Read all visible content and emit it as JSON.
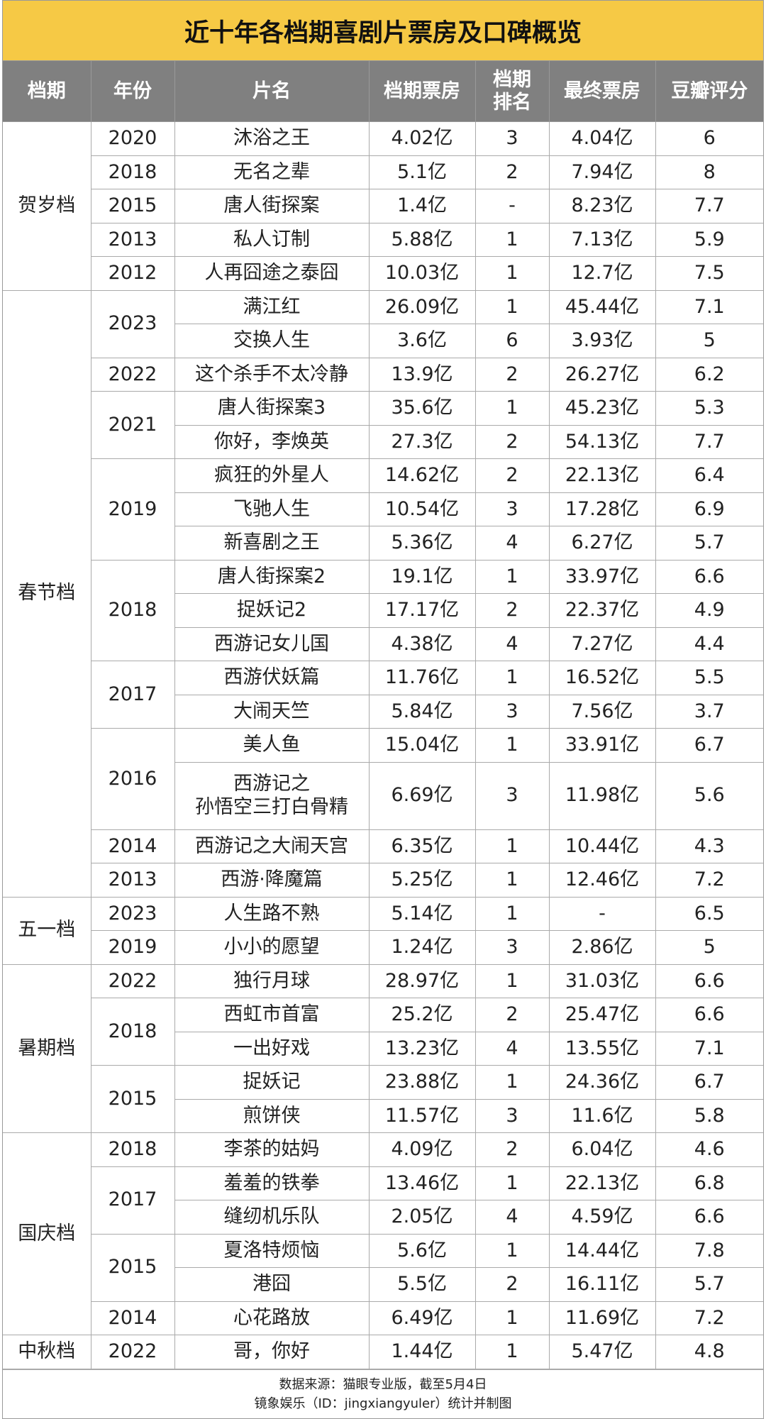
{
  "title": "近十年各档期喜剧片票房及口碑概览",
  "headers": [
    "档期",
    "年份",
    "片名",
    "档期票房",
    "档期\n排名",
    "最终票房",
    "豆瓣评分"
  ],
  "groups": [
    {
      "period": "贺岁档",
      "years": [
        {
          "year": "2020",
          "films": [
            [
              "沐浴之王",
              "4.02亿",
              "3",
              "4.04亿",
              "6"
            ]
          ]
        },
        {
          "year": "2018",
          "films": [
            [
              "无名之辈",
              "5.1亿",
              "2",
              "7.94亿",
              "8"
            ]
          ]
        },
        {
          "year": "2015",
          "films": [
            [
              "唐人街探案",
              "1.4亿",
              "-",
              "8.23亿",
              "7.7"
            ]
          ]
        },
        {
          "year": "2013",
          "films": [
            [
              "私人订制",
              "5.88亿",
              "1",
              "7.13亿",
              "5.9"
            ]
          ]
        },
        {
          "year": "2012",
          "films": [
            [
              "人再囧途之泰囧",
              "10.03亿",
              "1",
              "12.7亿",
              "7.5"
            ]
          ]
        }
      ]
    },
    {
      "period": "春节档",
      "years": [
        {
          "year": "2023",
          "films": [
            [
              "满江红",
              "26.09亿",
              "1",
              "45.44亿",
              "7.1"
            ],
            [
              "交换人生",
              "3.6亿",
              "6",
              "3.93亿",
              "5"
            ]
          ]
        },
        {
          "year": "2022",
          "films": [
            [
              "这个杀手不太冷静",
              "13.9亿",
              "2",
              "26.27亿",
              "6.2"
            ]
          ]
        },
        {
          "year": "2021",
          "films": [
            [
              "唐人街探案3",
              "35.6亿",
              "1",
              "45.23亿",
              "5.3"
            ],
            [
              "你好，李焕英",
              "27.3亿",
              "2",
              "54.13亿",
              "7.7"
            ]
          ]
        },
        {
          "year": "2019",
          "films": [
            [
              "疯狂的外星人",
              "14.62亿",
              "2",
              "22.13亿",
              "6.4"
            ],
            [
              "飞驰人生",
              "10.54亿",
              "3",
              "17.28亿",
              "6.9"
            ],
            [
              "新喜剧之王",
              "5.36亿",
              "4",
              "6.27亿",
              "5.7"
            ]
          ]
        },
        {
          "year": "2018",
          "films": [
            [
              "唐人街探案2",
              "19.1亿",
              "1",
              "33.97亿",
              "6.6"
            ],
            [
              "捉妖记2",
              "17.17亿",
              "2",
              "22.37亿",
              "4.9"
            ],
            [
              "西游记女儿国",
              "4.38亿",
              "4",
              "7.27亿",
              "4.4"
            ]
          ]
        },
        {
          "year": "2017",
          "films": [
            [
              "西游伏妖篇",
              "11.76亿",
              "1",
              "16.52亿",
              "5.5"
            ],
            [
              "大闹天竺",
              "5.84亿",
              "3",
              "7.56亿",
              "3.7"
            ]
          ]
        },
        {
          "year": "2016",
          "films": [
            [
              "美人鱼",
              "15.04亿",
              "1",
              "33.91亿",
              "6.7"
            ],
            [
              "西游记之\n孙悟空三打白骨精",
              "6.69亿",
              "3",
              "11.98亿",
              "5.6"
            ]
          ]
        },
        {
          "year": "2014",
          "films": [
            [
              "西游记之大闹天宫",
              "6.35亿",
              "1",
              "10.44亿",
              "4.3"
            ]
          ]
        },
        {
          "year": "2013",
          "films": [
            [
              "西游·降魔篇",
              "5.25亿",
              "1",
              "12.46亿",
              "7.2"
            ]
          ]
        }
      ]
    },
    {
      "period": "五一档",
      "years": [
        {
          "year": "2023",
          "films": [
            [
              "人生路不熟",
              "5.14亿",
              "1",
              "-",
              "6.5"
            ]
          ]
        },
        {
          "year": "2019",
          "films": [
            [
              "小小的愿望",
              "1.24亿",
              "3",
              "2.86亿",
              "5"
            ]
          ]
        }
      ]
    },
    {
      "period": "暑期档",
      "years": [
        {
          "year": "2022",
          "films": [
            [
              "独行月球",
              "28.97亿",
              "1",
              "31.03亿",
              "6.6"
            ]
          ]
        },
        {
          "year": "2018",
          "films": [
            [
              "西虹市首富",
              "25.2亿",
              "2",
              "25.47亿",
              "6.6"
            ],
            [
              "一出好戏",
              "13.23亿",
              "4",
              "13.55亿",
              "7.1"
            ]
          ]
        },
        {
          "year": "2015",
          "films": [
            [
              "捉妖记",
              "23.88亿",
              "1",
              "24.36亿",
              "6.7"
            ],
            [
              "煎饼侠",
              "11.57亿",
              "3",
              "11.6亿",
              "5.8"
            ]
          ]
        }
      ]
    },
    {
      "period": "国庆档",
      "years": [
        {
          "year": "2018",
          "films": [
            [
              "李茶的姑妈",
              "4.09亿",
              "2",
              "6.04亿",
              "4.6"
            ]
          ]
        },
        {
          "year": "2017",
          "films": [
            [
              "羞羞的铁拳",
              "13.46亿",
              "1",
              "22.13亿",
              "6.8"
            ],
            [
              "缝纫机乐队",
              "2.05亿",
              "4",
              "4.59亿",
              "6.6"
            ]
          ]
        },
        {
          "year": "2015",
          "films": [
            [
              "夏洛特烦恼",
              "5.6亿",
              "1",
              "14.44亿",
              "7.8"
            ],
            [
              "港囧",
              "5.5亿",
              "2",
              "16.11亿",
              "5.7"
            ]
          ]
        },
        {
          "year": "2014",
          "films": [
            [
              "心花路放",
              "6.49亿",
              "1",
              "11.69亿",
              "7.2"
            ]
          ]
        }
      ]
    },
    {
      "period": "中秋档",
      "years": [
        {
          "year": "2022",
          "films": [
            [
              "哥，你好",
              "1.44亿",
              "1",
              "5.47亿",
              "4.8"
            ]
          ]
        }
      ]
    }
  ],
  "footer": [
    "数据来源：猫眼专业版，截至5月4日",
    "镜象娱乐（ID：jingxiangyuler）统计并制图"
  ]
}
